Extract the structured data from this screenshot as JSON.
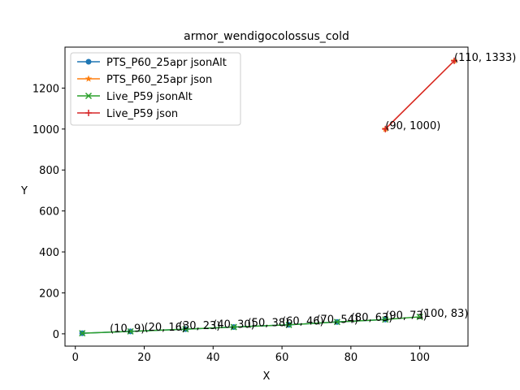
{
  "chart_data": {
    "type": "line",
    "title": "armor_wendigocolossus_cold",
    "xlabel": "X",
    "ylabel": "Y",
    "xlim": [
      -3,
      114
    ],
    "ylim": [
      -60,
      1400
    ],
    "xticks": [
      0,
      20,
      40,
      60,
      80,
      100
    ],
    "yticks": [
      0,
      200,
      400,
      600,
      800,
      1000,
      1200
    ],
    "grid": false,
    "legend_position": "top-left",
    "series": [
      {
        "name": "PTS_P60_25apr jsonAlt",
        "color": "#1f77b4",
        "marker": "circle",
        "x": [
          2,
          16,
          32,
          46,
          62,
          76,
          90
        ],
        "y": [
          3,
          12,
          23,
          33,
          44,
          58,
          70
        ]
      },
      {
        "name": "PTS_P60_25apr json",
        "color": "#ff7f0e",
        "marker": "star",
        "x": [
          90,
          110
        ],
        "y": [
          1000,
          1333
        ]
      },
      {
        "name": "Live_P59 jsonAlt",
        "color": "#2ca02c",
        "marker": "x",
        "x": [
          2,
          16,
          32,
          46,
          62,
          76,
          90,
          100
        ],
        "y": [
          3,
          12,
          23,
          33,
          44,
          58,
          70,
          83
        ]
      },
      {
        "name": "Live_P59 json",
        "color": "#d62728",
        "marker": "plus",
        "x": [
          90,
          110
        ],
        "y": [
          1000,
          1333
        ]
      }
    ],
    "annotations": [
      {
        "text": "(10, 9)",
        "x": 10,
        "y": 9
      },
      {
        "text": "(20, 16)",
        "x": 20,
        "y": 16
      },
      {
        "text": "(30, 23)",
        "x": 30,
        "y": 23
      },
      {
        "text": "(40, 30)",
        "x": 40,
        "y": 30
      },
      {
        "text": "(50, 38)",
        "x": 50,
        "y": 38
      },
      {
        "text": "(60, 46)",
        "x": 60,
        "y": 46
      },
      {
        "text": "(70, 54)",
        "x": 70,
        "y": 54
      },
      {
        "text": "(80, 63)",
        "x": 80,
        "y": 63
      },
      {
        "text": "(90, 73)",
        "x": 90,
        "y": 73
      },
      {
        "text": "(100, 83)",
        "x": 100,
        "y": 83
      },
      {
        "text": "(90, 1000)",
        "x": 90,
        "y": 1000
      },
      {
        "text": "(110, 1333)",
        "x": 110,
        "y": 1333
      }
    ]
  }
}
